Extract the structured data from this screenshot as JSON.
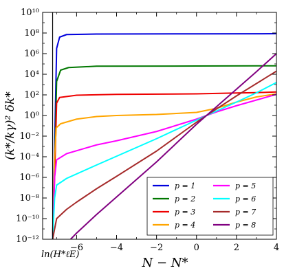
{
  "chart_data": {
    "type": "line",
    "title": "",
    "xlabel": "N − N*",
    "ylabel": "(k*/kγ)² δk*",
    "xlim": [
      -7.7,
      4
    ],
    "ylim_log10": [
      -12,
      10
    ],
    "y_scale": "log",
    "x_ticks": [
      -6,
      -4,
      -2,
      0,
      2,
      4
    ],
    "x_tick_labels": [
      "−6",
      "−4",
      "−2",
      "0",
      "2",
      "4"
    ],
    "y_ticks_log10": [
      -12,
      -10,
      -8,
      -6,
      -4,
      -2,
      0,
      2,
      4,
      6,
      8,
      10
    ],
    "y_tick_labels": [
      "10⁻¹²",
      "10⁻¹⁰",
      "10⁻⁸",
      "10⁻⁶",
      "10⁻⁴",
      "10⁻²",
      "10⁰",
      "10²",
      "10⁴",
      "10⁶",
      "10⁸",
      "10¹⁰"
    ],
    "vline": {
      "x": -7.2,
      "label": "ln(H*ℓE)"
    },
    "grid": false,
    "legend_position": "bottom-right",
    "series": [
      {
        "name": "p = 1",
        "color": "#0000dd",
        "points": [
          [
            -7.2,
            -12
          ],
          [
            -7.1,
            -3
          ],
          [
            -7.0,
            6.5
          ],
          [
            -6.85,
            7.6
          ],
          [
            -6.5,
            7.85
          ],
          [
            -5,
            7.9
          ],
          [
            0,
            7.92
          ],
          [
            4,
            7.93
          ]
        ]
      },
      {
        "name": "p = 2",
        "color": "#007700",
        "points": [
          [
            -7.2,
            -12
          ],
          [
            -7.1,
            -5
          ],
          [
            -7.0,
            3.3
          ],
          [
            -6.8,
            4.4
          ],
          [
            -6.4,
            4.65
          ],
          [
            -5,
            4.78
          ],
          [
            0,
            4.8
          ],
          [
            4,
            4.82
          ]
        ]
      },
      {
        "name": "p = 3",
        "color": "#ee0000",
        "points": [
          [
            -7.2,
            -12
          ],
          [
            -7.1,
            -6
          ],
          [
            -7.0,
            1.2
          ],
          [
            -6.85,
            1.75
          ],
          [
            -6,
            1.97
          ],
          [
            -4,
            2.05
          ],
          [
            0,
            2.1
          ],
          [
            2,
            2.18
          ],
          [
            3,
            2.22
          ],
          [
            4,
            2.28
          ]
        ]
      },
      {
        "name": "p = 4",
        "color": "#ffa500",
        "points": [
          [
            -7.2,
            -12
          ],
          [
            -7.1,
            -4
          ],
          [
            -7.02,
            -1.2
          ],
          [
            -6.8,
            -0.8
          ],
          [
            -6,
            -0.35
          ],
          [
            -5,
            -0.1
          ],
          [
            -4,
            0.0
          ],
          [
            -2,
            0.1
          ],
          [
            0,
            0.3
          ],
          [
            1,
            0.7
          ],
          [
            2,
            1.3
          ],
          [
            3,
            1.8
          ],
          [
            4,
            2.1
          ]
        ]
      },
      {
        "name": "p = 5",
        "color": "#ff00ff",
        "points": [
          [
            -7.2,
            -12
          ],
          [
            -7.1,
            -6
          ],
          [
            -7.0,
            -4.3
          ],
          [
            -6.5,
            -3.7
          ],
          [
            -5,
            -2.85
          ],
          [
            -4,
            -2.45
          ],
          [
            -2,
            -1.55
          ],
          [
            0,
            -0.35
          ],
          [
            0.5,
            0.0
          ],
          [
            1,
            0.35
          ],
          [
            2,
            0.95
          ],
          [
            3,
            1.5
          ],
          [
            4,
            2.05
          ]
        ]
      },
      {
        "name": "p = 6",
        "color": "#00ffff",
        "points": [
          [
            -7.2,
            -12
          ],
          [
            -7.1,
            -8
          ],
          [
            -7.0,
            -6.75
          ],
          [
            -6.5,
            -6.1
          ],
          [
            -5,
            -4.8
          ],
          [
            -4,
            -3.95
          ],
          [
            -2,
            -2.25
          ],
          [
            0,
            -0.45
          ],
          [
            0.5,
            0.0
          ],
          [
            2,
            1.3
          ],
          [
            3,
            2.2
          ],
          [
            4,
            3.2
          ]
        ]
      },
      {
        "name": "p = 7",
        "color": "#a52a2a",
        "points": [
          [
            -7.2,
            -12
          ],
          [
            -7.0,
            -10.0
          ],
          [
            -6.5,
            -9.1
          ],
          [
            -6,
            -8.4
          ],
          [
            -5,
            -7.1
          ],
          [
            -4,
            -5.9
          ],
          [
            -2,
            -3.45
          ],
          [
            0,
            -0.65
          ],
          [
            0.5,
            0.0
          ],
          [
            2,
            1.9
          ],
          [
            3,
            3.1
          ],
          [
            4,
            4.3
          ]
        ]
      },
      {
        "name": "p = 8",
        "color": "#800080",
        "points": [
          [
            -6.3,
            -12
          ],
          [
            -6,
            -11.4
          ],
          [
            -5,
            -9.6
          ],
          [
            -4,
            -7.9
          ],
          [
            -2,
            -4.5
          ],
          [
            0,
            -0.85
          ],
          [
            0.5,
            0.0
          ],
          [
            2,
            2.55
          ],
          [
            3,
            4.25
          ],
          [
            4,
            6.0
          ]
        ]
      }
    ]
  }
}
